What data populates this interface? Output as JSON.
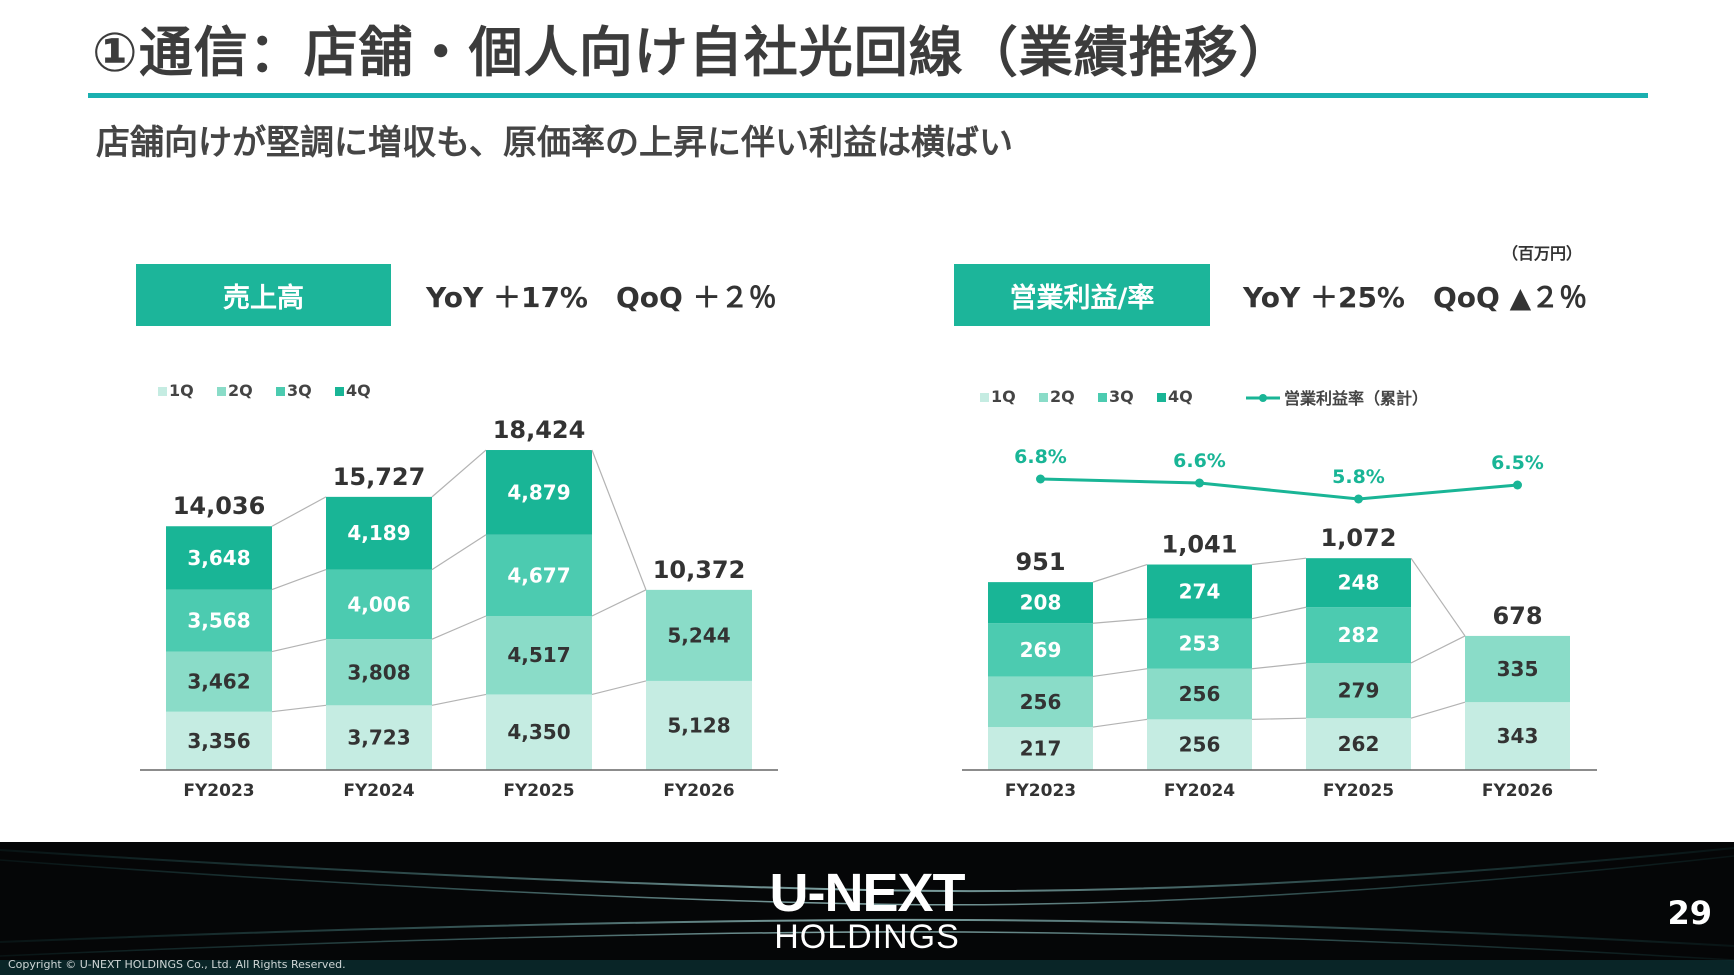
{
  "header": {
    "title": "①通信：店舗・個人向け自社光回線（業績推移）",
    "subtitle": "店舗向けが堅調に増収も、原価率の上昇に伴い利益は横ばい",
    "unit": "（百万円）"
  },
  "sales_panel": {
    "label": "売上高",
    "growth": "YoY ＋17%　QoQ ＋２％"
  },
  "profit_panel": {
    "label": "営業利益/率",
    "growth": "YoY ＋25%　QoQ ▲２％"
  },
  "colors": {
    "q1": "#c5ece2",
    "q2": "#8adcc8",
    "q3": "#4ccbb0",
    "q4": "#19b596",
    "line": "#19b596",
    "connector": "#b3b3b3"
  },
  "chart_data": [
    {
      "type": "bar",
      "stacked": true,
      "categories": [
        "FY2023",
        "FY2024",
        "FY2025",
        "FY2026"
      ],
      "series": [
        {
          "name": "1Q",
          "values": [
            3356,
            3723,
            4350,
            5128
          ]
        },
        {
          "name": "2Q",
          "values": [
            3462,
            3808,
            4517,
            5244
          ]
        },
        {
          "name": "3Q",
          "values": [
            3568,
            4006,
            4677,
            null
          ]
        },
        {
          "name": "4Q",
          "values": [
            3648,
            4189,
            4879,
            null
          ]
        }
      ],
      "segment_labels": [
        [
          "3,356",
          "3,462",
          "3,568",
          "3,648"
        ],
        [
          "3,723",
          "3,808",
          "4,006",
          "4,189"
        ],
        [
          "4,350",
          "4,517",
          "4,677",
          "4,879"
        ],
        [
          "5,128",
          "5,244",
          "",
          ""
        ]
      ],
      "totals": [
        14036,
        15727,
        18424,
        10372
      ],
      "total_labels": [
        "14,036",
        "15,727",
        "18,424",
        "10,372"
      ],
      "legend": [
        "1Q",
        "2Q",
        "3Q",
        "4Q"
      ],
      "legend_position": "top-left",
      "title": "",
      "xlabel": "",
      "ylabel": "",
      "ylim": [
        0,
        18424
      ],
      "grid": false
    },
    {
      "type": "bar",
      "stacked": true,
      "categories": [
        "FY2023",
        "FY2024",
        "FY2025",
        "FY2026"
      ],
      "series": [
        {
          "name": "1Q",
          "values": [
            217,
            256,
            262,
            343
          ]
        },
        {
          "name": "2Q",
          "values": [
            256,
            256,
            279,
            335
          ]
        },
        {
          "name": "3Q",
          "values": [
            269,
            253,
            282,
            null
          ]
        },
        {
          "name": "4Q",
          "values": [
            208,
            274,
            248,
            null
          ]
        }
      ],
      "segment_labels": [
        [
          "217",
          "256",
          "269",
          "208"
        ],
        [
          "256",
          "256",
          "253",
          "274"
        ],
        [
          "262",
          "279",
          "282",
          "248"
        ],
        [
          "343",
          "335",
          "",
          ""
        ]
      ],
      "totals": [
        951,
        1041,
        1072,
        678
      ],
      "total_labels": [
        "951",
        "1,041",
        "1,072",
        "678"
      ],
      "line_series": {
        "name": "営業利益率（累計）",
        "values": [
          6.8,
          6.6,
          5.8,
          6.5
        ],
        "labels": [
          "6.8%",
          "6.6%",
          "5.8%",
          "6.5%"
        ]
      },
      "legend": [
        "1Q",
        "2Q",
        "3Q",
        "4Q",
        "営業利益率（累計）"
      ],
      "legend_position": "top-left",
      "title": "",
      "xlabel": "",
      "ylabel": "",
      "ylim": [
        0,
        1072
      ],
      "grid": false
    }
  ],
  "footer": {
    "logo_main": "U-NEXT",
    "logo_sub": "HOLDINGS",
    "page_number": "29",
    "copyright": "Copyright © U-NEXT HOLDINGS Co., Ltd. All Rights Reserved."
  }
}
